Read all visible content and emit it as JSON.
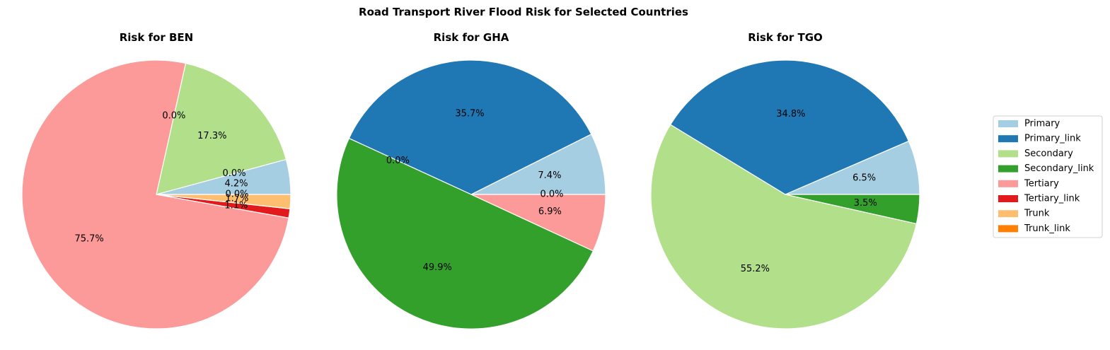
{
  "chart_data": {
    "type": "pie",
    "title": "Road Transport River Flood Risk for Selected Countries",
    "legend": {
      "placement": "right",
      "entries": [
        {
          "name": "Primary",
          "color": "#a6cee3"
        },
        {
          "name": "Primary_link",
          "color": "#1f78b4"
        },
        {
          "name": "Secondary",
          "color": "#b2df8a"
        },
        {
          "name": "Secondary_link",
          "color": "#33a02c"
        },
        {
          "name": "Tertiary",
          "color": "#fb9a99"
        },
        {
          "name": "Tertiary_link",
          "color": "#e31a1c"
        },
        {
          "name": "Trunk",
          "color": "#fdbf6f"
        },
        {
          "name": "Trunk_link",
          "color": "#ff7f00"
        }
      ]
    },
    "pies": [
      {
        "title": "Risk for BEN",
        "slices": [
          {
            "category": "Primary",
            "value": 4.2,
            "label": "4.2%"
          },
          {
            "category": "Primary_link",
            "value": 0.0,
            "label": "0.0%"
          },
          {
            "category": "Secondary",
            "value": 17.3,
            "label": "17.3%"
          },
          {
            "category": "Secondary_link",
            "value": 0.0,
            "label": "0.0%"
          },
          {
            "category": "Tertiary",
            "value": 75.7,
            "label": "75.7%"
          },
          {
            "category": "Tertiary_link",
            "value": 1.1,
            "label": "1.1%"
          },
          {
            "category": "Trunk",
            "value": 1.7,
            "label": "1.7%"
          },
          {
            "category": "Trunk_link",
            "value": 0.0,
            "label": "0.0%"
          }
        ]
      },
      {
        "title": "Risk for GHA",
        "slices": [
          {
            "category": "Primary",
            "value": 7.4,
            "label": "7.4%"
          },
          {
            "category": "Primary_link",
            "value": 35.7,
            "label": "35.7%"
          },
          {
            "category": "Secondary",
            "value": 0.0,
            "label": "0.0%"
          },
          {
            "category": "Secondary_link",
            "value": 49.9,
            "label": "49.9%"
          },
          {
            "category": "Tertiary",
            "value": 6.9,
            "label": "6.9%"
          },
          {
            "category": "Tertiary_link",
            "value": 0.0,
            "label": "0.0%"
          }
        ]
      },
      {
        "title": "Risk for TGO",
        "slices": [
          {
            "category": "Primary",
            "value": 6.5,
            "label": "6.5%"
          },
          {
            "category": "Primary_link",
            "value": 34.8,
            "label": "34.8%"
          },
          {
            "category": "Secondary",
            "value": 55.2,
            "label": "55.2%"
          },
          {
            "category": "Secondary_link",
            "value": 3.5,
            "label": "3.5%"
          }
        ]
      }
    ]
  }
}
